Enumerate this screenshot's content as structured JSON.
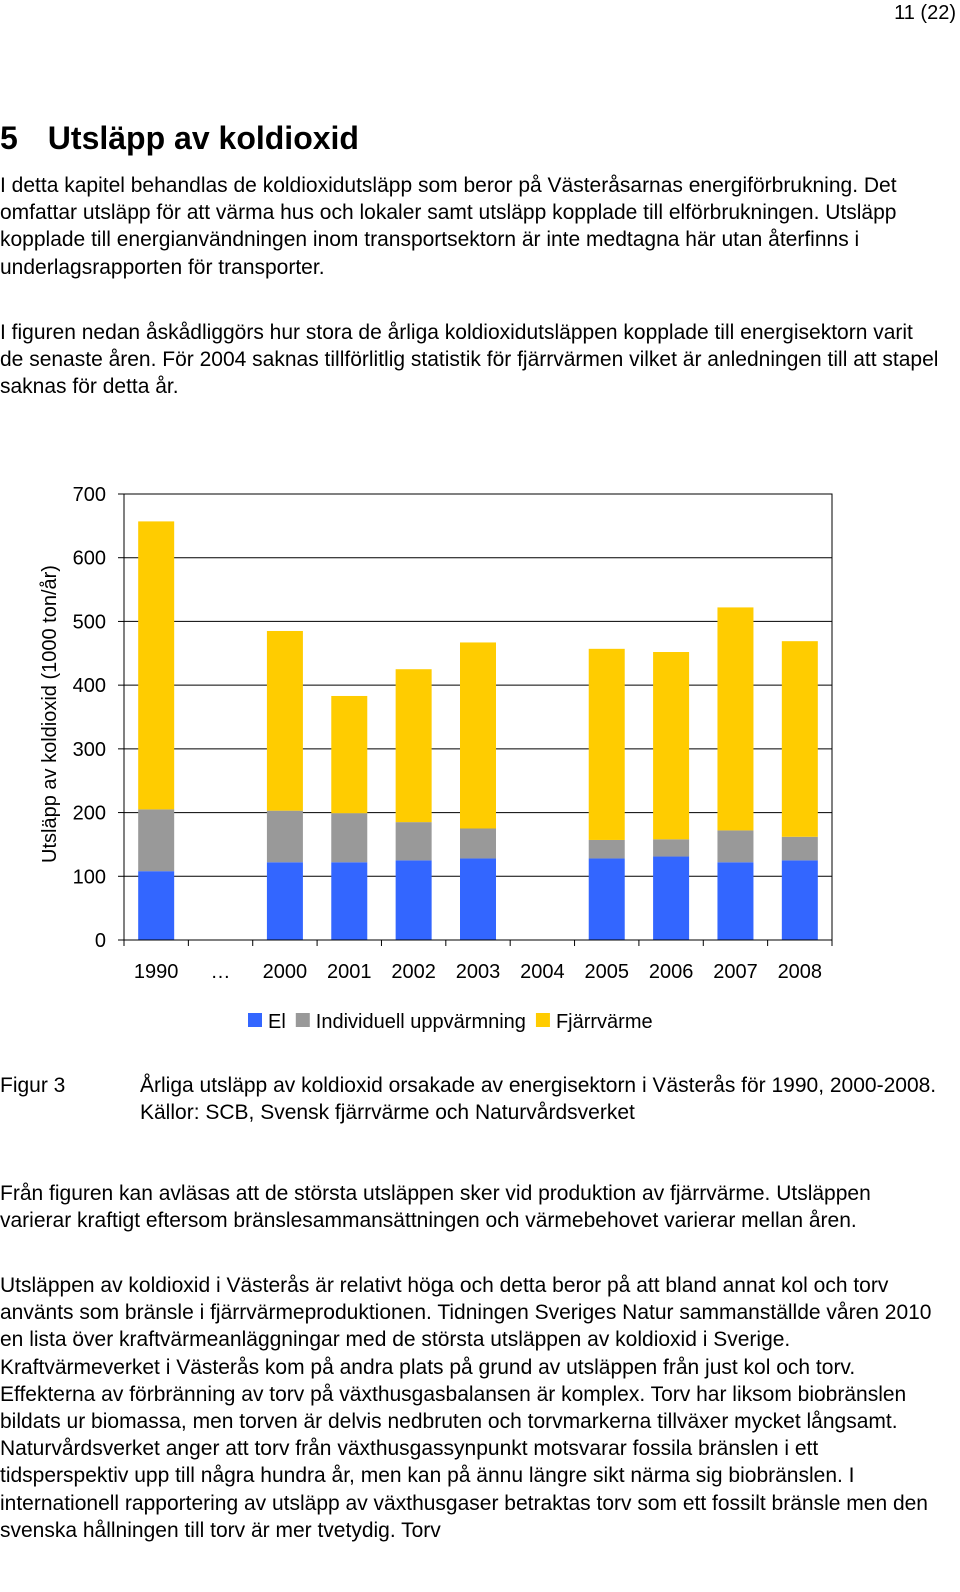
{
  "page_number": "11 (22)",
  "heading": {
    "number": "5",
    "title": "Utsläpp av koldioxid"
  },
  "paragraphs": {
    "p1": "I detta kapitel behandlas de koldioxidutsläpp som beror på Västeråsarnas energiförbrukning. Det omfattar utsläpp för att värma hus och lokaler samt utsläpp kopplade till elförbrukningen. Utsläpp kopplade till energianvändningen inom transportsektorn är inte medtagna här utan återfinns i underlagsrapporten för transporter.",
    "p2": "I figuren nedan åskådliggörs hur stora de årliga koldioxidutsläppen kopplade till energisektorn varit de senaste åren. För 2004 saknas tillförlitlig statistik för fjärrvärmen vilket är anledningen till att stapel saknas för detta år.",
    "p3": "Från figuren kan avläsas att de största utsläppen sker vid produktion av fjärrvärme. Utsläppen varierar kraftigt eftersom bränslesammansättningen och värmebehovet varierar mellan åren.",
    "p4": "Utsläppen av koldioxid i Västerås är relativt höga och detta beror på att bland annat kol och torv använts som bränsle i fjärrvärmeproduktionen. Tidningen Sveriges Natur sammanställde våren 2010 en lista över kraftvärmeanläggningar med de största utsläppen av koldioxid i Sverige. Kraftvärmeverket i Västerås kom på andra plats på grund av utsläppen från just kol och torv. Effekterna av förbränning av torv på växthusgasbalansen är komplex. Torv har liksom biobränslen bildats ur biomassa, men torven är delvis nedbruten och torvmarkerna tillväxer mycket långsamt. Naturvårdsverket anger att torv från växthusgassynpunkt motsvarar fossila bränslen i ett tidsperspektiv upp till några hundra år, men kan på ännu längre sikt närma sig biobränslen. I internationell rapportering av utsläpp av växthusgaser betraktas torv som ett fossilt bränsle men den svenska hållningen till torv är mer tvetydig. Torv"
  },
  "figure": {
    "label": "Figur 3",
    "caption": "Årliga utsläpp av koldioxid orsakade av energisektorn i Västerås för 1990, 2000-2008. Källor: SCB, Svensk fjärrvärme och Naturvårdsverket"
  },
  "chart_data": {
    "type": "bar",
    "stacked": true,
    "categories": [
      "1990",
      "…",
      "2000",
      "2001",
      "2002",
      "2003",
      "2004",
      "2005",
      "2006",
      "2007",
      "2008"
    ],
    "series": [
      {
        "name": "El",
        "color": "#3366FF",
        "values": [
          108,
          null,
          122,
          122,
          125,
          128,
          null,
          128,
          131,
          122,
          125
        ]
      },
      {
        "name": "Individuell uppvärmning",
        "color": "#999999",
        "values": [
          97,
          null,
          81,
          77,
          60,
          47,
          null,
          29,
          27,
          50,
          37
        ]
      },
      {
        "name": "Fjärrvärme",
        "color": "#FFCC00",
        "values": [
          452,
          null,
          282,
          184,
          240,
          292,
          null,
          300,
          294,
          350,
          307
        ]
      }
    ],
    "ylabel": "Utsläpp av koldioxid (1000 ton/år)",
    "xlabel": "",
    "ylim": [
      0,
      700
    ],
    "yticks": [
      0,
      100,
      200,
      300,
      400,
      500,
      600,
      700
    ],
    "grid": true,
    "legend_position": "bottom"
  }
}
